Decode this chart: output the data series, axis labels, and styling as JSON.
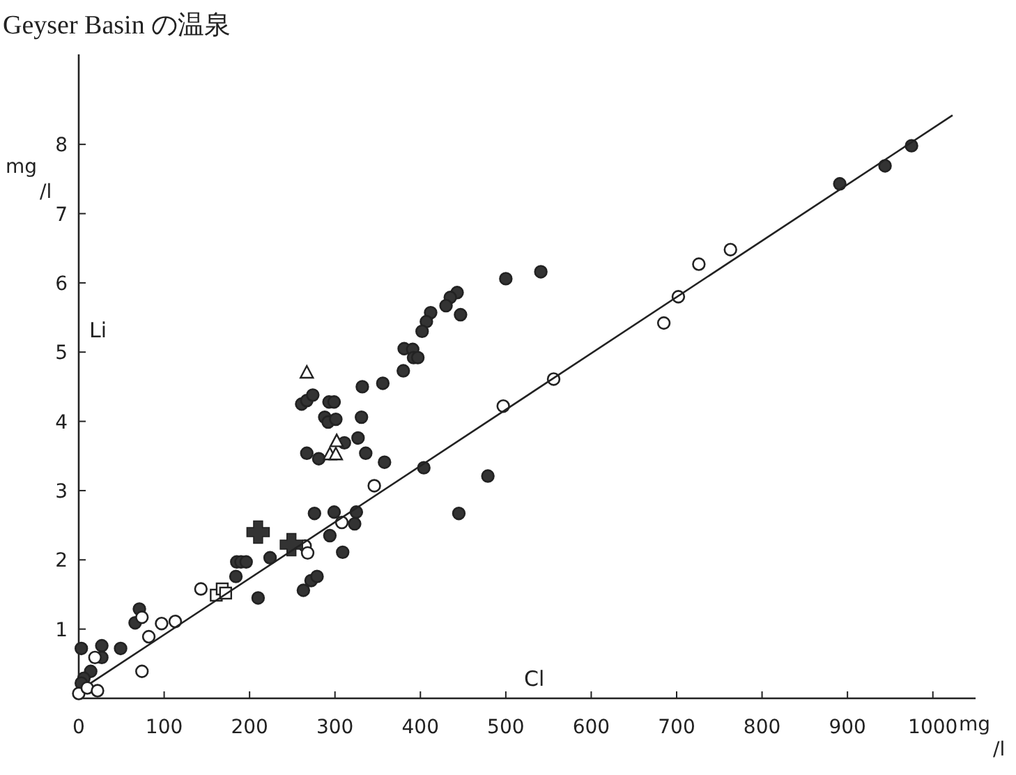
{
  "chart_data": {
    "type": "scatter",
    "title": "Geyser Basin の温泉",
    "xlabel": "Cl",
    "ylabel": "Li",
    "annotations": [
      "mg/l",
      "mg/l"
    ],
    "xlim": [
      0,
      1050
    ],
    "ylim": [
      0,
      9.3
    ],
    "xticks": [
      0,
      100,
      200,
      300,
      400,
      500,
      600,
      700,
      800,
      900,
      1000
    ],
    "yticks": [
      {
        "value": 0,
        "label": null
      },
      1,
      2,
      3,
      4,
      5,
      6,
      7,
      8
    ],
    "grid": false,
    "series": [
      {
        "type": "scatter",
        "marker": "circle",
        "color": "#333333",
        "x": [
          3,
          14,
          6,
          3,
          27,
          27,
          49,
          66,
          71,
          184,
          185,
          190,
          196,
          210,
          224,
          263,
          272,
          279,
          276,
          294,
          299,
          309,
          323,
          325,
          267,
          281,
          311,
          327,
          336,
          358,
          261,
          267,
          274,
          293,
          299,
          288,
          292,
          301,
          331,
          332,
          356,
          380,
          381,
          391,
          392,
          397,
          404,
          479,
          445,
          541,
          500,
          443,
          435,
          430,
          447,
          412,
          407,
          402,
          891,
          944,
          975
        ],
        "values": [
          0.72,
          0.39,
          0.29,
          0.22,
          0.76,
          0.59,
          0.72,
          1.09,
          1.29,
          1.76,
          1.97,
          1.97,
          1.97,
          1.45,
          2.03,
          1.56,
          1.7,
          1.76,
          2.67,
          2.35,
          2.69,
          2.11,
          2.52,
          2.69,
          3.54,
          3.46,
          3.69,
          3.76,
          3.54,
          3.41,
          4.25,
          4.3,
          4.38,
          4.28,
          4.28,
          4.06,
          3.99,
          4.03,
          4.06,
          4.5,
          4.55,
          4.73,
          5.05,
          5.04,
          4.92,
          4.92,
          3.33,
          3.21,
          2.67,
          6.16,
          6.06,
          5.86,
          5.79,
          5.67,
          5.54,
          5.57,
          5.44,
          5.3,
          7.43,
          7.69,
          7.98
        ]
      },
      {
        "type": "scatter",
        "marker": "circle",
        "color": "#ffffff",
        "x": [
          0,
          10,
          22,
          19,
          74,
          74,
          82,
          97,
          113,
          143,
          265,
          268,
          308,
          346,
          497,
          556,
          685,
          702,
          726,
          763
        ],
        "values": [
          0.07,
          0.15,
          0.11,
          0.59,
          0.39,
          1.17,
          0.89,
          1.08,
          1.11,
          1.58,
          2.2,
          2.1,
          2.54,
          3.07,
          4.22,
          4.61,
          5.42,
          5.8,
          6.27,
          6.48
        ]
      },
      {
        "type": "scatter",
        "marker": "triangle",
        "color": "#ffffff",
        "x": [
          294,
          301,
          302,
          267
        ],
        "values": [
          3.52,
          3.52,
          3.71,
          4.7
        ]
      },
      {
        "type": "scatter",
        "marker": "square",
        "color": "#ffffff",
        "x": [
          161,
          168,
          172
        ],
        "values": [
          1.49,
          1.58,
          1.52
        ]
      },
      {
        "type": "scatter",
        "marker": "cross",
        "color": "#333333",
        "x": [
          210,
          249
        ],
        "values": [
          2.4,
          2.22
        ]
      },
      {
        "type": "line",
        "marker": "none",
        "line_style": "solid",
        "color": "#222222",
        "x": [
          14,
          1023
        ],
        "values": [
          0.22,
          8.42
        ]
      }
    ]
  }
}
